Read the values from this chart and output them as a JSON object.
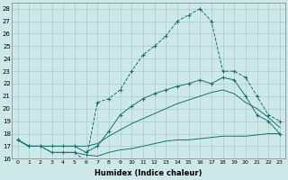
{
  "xlabel": "Humidex (Indice chaleur)",
  "xlim": [
    -0.5,
    23.5
  ],
  "ylim": [
    16,
    28.5
  ],
  "yticks": [
    16,
    17,
    18,
    19,
    20,
    21,
    22,
    23,
    24,
    25,
    26,
    27,
    28
  ],
  "xticks": [
    0,
    1,
    2,
    3,
    4,
    5,
    6,
    7,
    8,
    9,
    10,
    11,
    12,
    13,
    14,
    15,
    16,
    17,
    18,
    19,
    20,
    21,
    22,
    23
  ],
  "background_color": "#cce8e8",
  "grid_color": "#aacccc",
  "line_color": "#1a7070",
  "series": [
    {
      "x": [
        0,
        1,
        2,
        3,
        4,
        5,
        6,
        7,
        8,
        9,
        10,
        11,
        12,
        13,
        14,
        15,
        16,
        17,
        18,
        19,
        20,
        21,
        22,
        23
      ],
      "y": [
        17.5,
        17.0,
        17.0,
        16.5,
        16.5,
        16.5,
        16.3,
        16.2,
        16.5,
        16.7,
        16.8,
        17.0,
        17.2,
        17.4,
        17.5,
        17.5,
        17.6,
        17.7,
        17.8,
        17.8,
        17.8,
        17.9,
        18.0,
        18.0
      ],
      "marker": null,
      "linestyle": "-"
    },
    {
      "x": [
        0,
        1,
        2,
        3,
        4,
        5,
        6,
        7,
        8,
        9,
        10,
        11,
        12,
        13,
        14,
        15,
        16,
        17,
        18,
        19,
        20,
        21,
        22,
        23
      ],
      "y": [
        17.5,
        17.0,
        17.0,
        17.0,
        17.0,
        17.0,
        17.0,
        17.2,
        17.8,
        18.3,
        18.8,
        19.2,
        19.6,
        20.0,
        20.4,
        20.7,
        21.0,
        21.3,
        21.5,
        21.2,
        20.5,
        20.0,
        19.3,
        18.5
      ],
      "marker": null,
      "linestyle": "-"
    },
    {
      "x": [
        0,
        1,
        2,
        3,
        4,
        5,
        6,
        7,
        8,
        9,
        10,
        11,
        12,
        13,
        14,
        15,
        16,
        17,
        18,
        19,
        20,
        21,
        22,
        23
      ],
      "y": [
        17.5,
        17.0,
        17.0,
        17.0,
        17.0,
        17.0,
        16.5,
        17.0,
        18.2,
        19.5,
        20.2,
        20.8,
        21.2,
        21.5,
        21.8,
        22.0,
        22.3,
        22.0,
        22.5,
        22.3,
        21.0,
        19.5,
        19.0,
        18.0
      ],
      "marker": "+",
      "linestyle": "-"
    },
    {
      "x": [
        0,
        1,
        2,
        3,
        4,
        5,
        6,
        7,
        8,
        9,
        10,
        11,
        12,
        13,
        14,
        15,
        16,
        17,
        18,
        19,
        20,
        21,
        22,
        23
      ],
      "y": [
        17.5,
        17.0,
        17.0,
        16.5,
        16.5,
        16.5,
        15.8,
        20.5,
        20.8,
        21.5,
        23.0,
        24.3,
        25.0,
        25.8,
        27.0,
        27.5,
        28.0,
        27.0,
        23.0,
        23.0,
        22.5,
        21.0,
        19.5,
        19.0
      ],
      "marker": "+",
      "linestyle": "--"
    }
  ]
}
